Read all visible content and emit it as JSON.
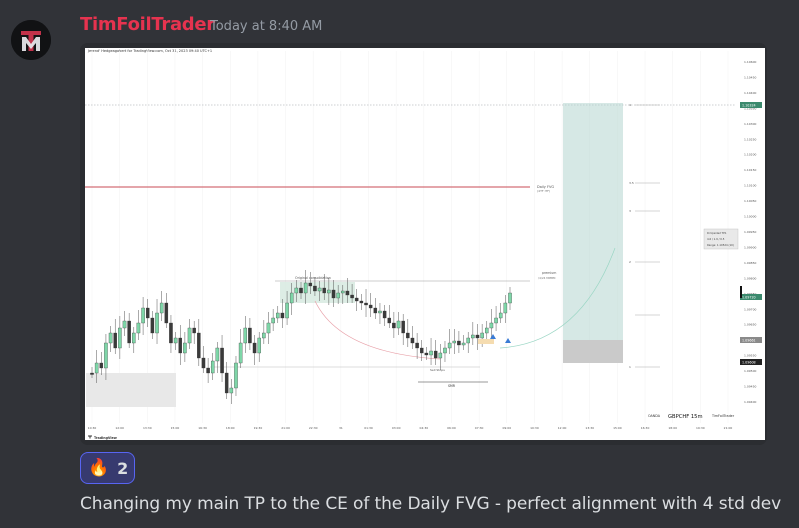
{
  "message": {
    "username": "TimFoilTrader",
    "timestamp": "Today at 8:40 AM",
    "content": "Changing my main TP to the CE of the Daily FVG - perfect alignment with 4 std dev",
    "avatar_icon": "tm-logo-icon",
    "colors": {
      "username": "#e6334f",
      "background": "#313338",
      "reaction_border": "#5865f2"
    }
  },
  "reaction": {
    "emoji": "🔥",
    "emoji_icon": "fire-icon",
    "count": "2"
  },
  "chart": {
    "header": "Jerend' Hedgeagobert for TradingView.com, Oct 31, 2023 09:40 UTC+1",
    "symbol": "GBPCHF 15m",
    "broker": "OANDA",
    "author": "TimFoilTrader",
    "watermark": "TradingView",
    "annotations": {
      "daily_fvg": "Daily FVG",
      "daily_fvg_sub": "(4TF ITF)",
      "original_consolidation": "Original consolidation",
      "premium": "premium",
      "premium_sub": "(4/24 MMBM",
      "sell_stops": "Sell Stops",
      "smr": "SMR"
    },
    "std_dev_levels": [
      "4",
      "3.5",
      "3",
      "2",
      "1"
    ],
    "position_box": [
      "Ri Upside2 TP1",
      "4.6 / 1.9 / 0.5",
      "Range: 1.10524 (10)"
    ],
    "price_labels": [
      "1.10600",
      "1.10450",
      "1.10400",
      "1.10350",
      "1.10300",
      "1.10250",
      "1.10200",
      "1.10150",
      "1.10100",
      "1.10050",
      "1.10000",
      "1.09950",
      "1.09900",
      "1.09850",
      "1.09800",
      "1.09750",
      "1.09700",
      "1.09650",
      "1.09600",
      "1.09550",
      "1.09500",
      "1.09450",
      "1.09400"
    ],
    "price_markers": {
      "top": "1.10324",
      "mid_green": "1.09720",
      "mid_grey": "1.09661",
      "low_black": "1.09608"
    },
    "time_labels": [
      "10:30",
      "12:00",
      "13:30",
      "15:00",
      "16:30",
      "18:00",
      "19:30",
      "21:00",
      "22:30",
      "31",
      "01:30",
      "03:00",
      "04:30",
      "06:00",
      "07:30",
      "09:00",
      "10:30",
      "12:00",
      "13:30",
      "15:00",
      "16:30",
      "18:00",
      "19:30",
      "21:00"
    ]
  }
}
